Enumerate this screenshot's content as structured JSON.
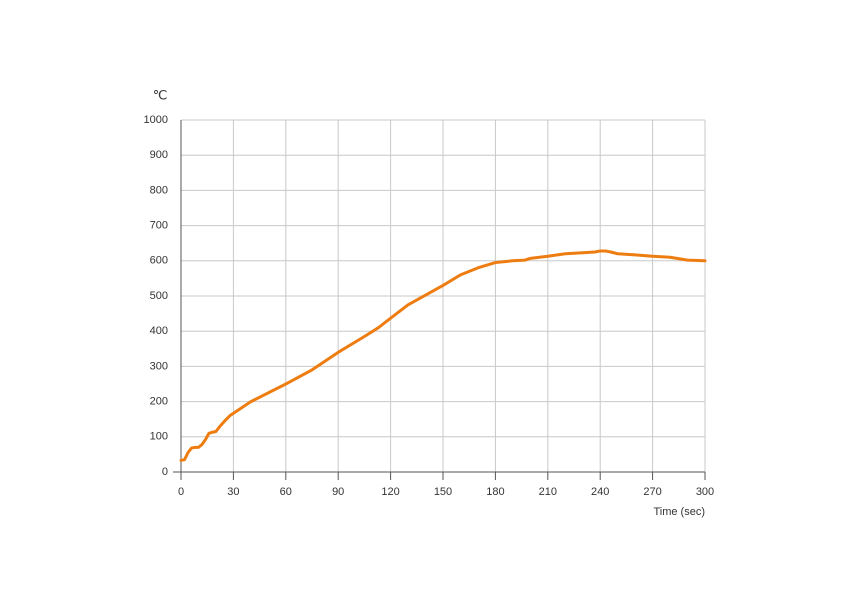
{
  "chart_data": {
    "type": "line",
    "y_label": "℃",
    "x_label": "Time (sec)",
    "xlim": [
      0,
      300
    ],
    "ylim": [
      0,
      1000
    ],
    "xticks": [
      0,
      30,
      60,
      90,
      120,
      150,
      180,
      210,
      240,
      270,
      300
    ],
    "yticks": [
      0,
      100,
      200,
      300,
      400,
      500,
      600,
      700,
      800,
      900,
      1000
    ],
    "grid": true,
    "series": [
      {
        "color": "#ee7d11",
        "x": [
          0,
          2,
          4,
          6,
          8,
          10,
          12,
          14,
          16,
          18,
          20,
          22,
          25,
          28,
          40,
          60,
          75,
          90,
          105,
          113,
          120,
          130,
          150,
          160,
          170,
          180,
          190,
          197,
          200,
          210,
          220,
          230,
          237,
          240,
          243,
          246,
          250,
          260,
          270,
          280,
          290,
          300
        ],
        "values": [
          33,
          35,
          55,
          68,
          70,
          70,
          78,
          92,
          110,
          113,
          115,
          128,
          145,
          160,
          200,
          250,
          290,
          340,
          385,
          410,
          437,
          475,
          530,
          560,
          580,
          595,
          600,
          602,
          607,
          613,
          620,
          623,
          625,
          628,
          628,
          625,
          620,
          617,
          613,
          610,
          602,
          600
        ]
      }
    ]
  }
}
